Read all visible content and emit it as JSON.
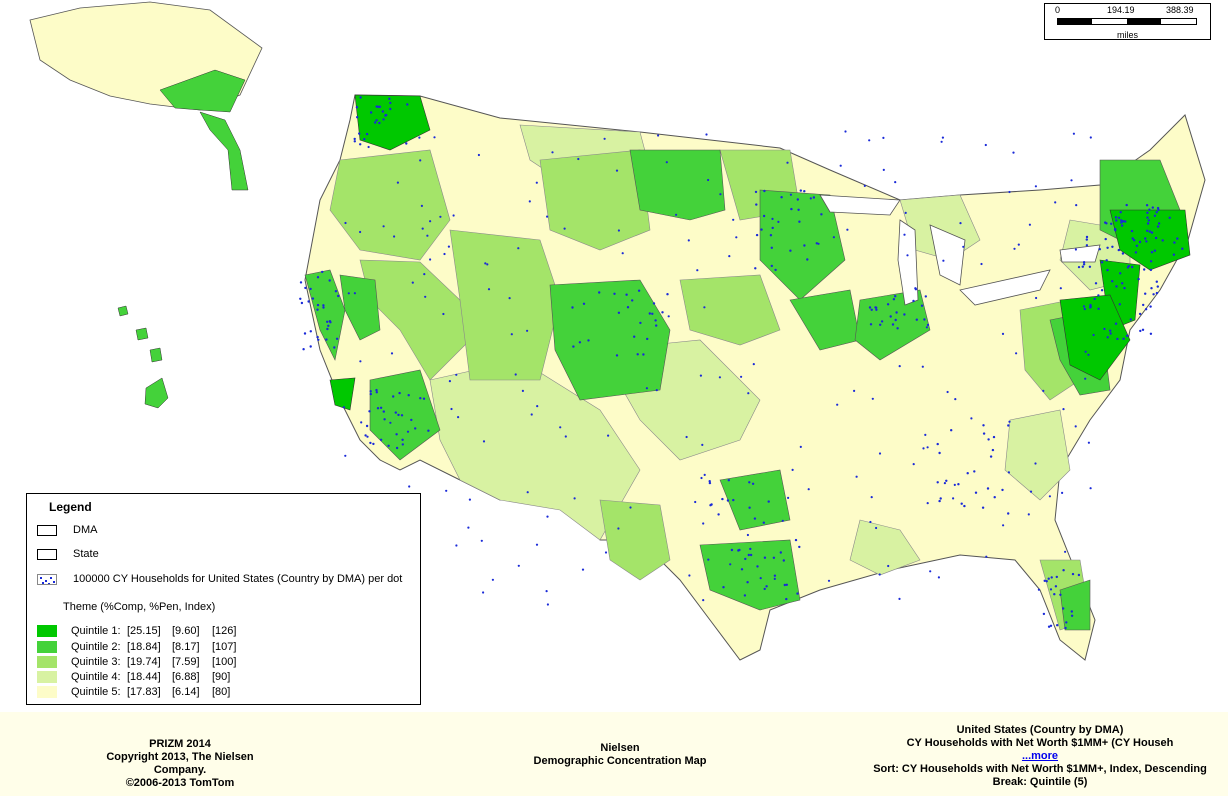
{
  "scale_bar": {
    "ticks": [
      "0",
      "194.19",
      "388.39"
    ],
    "unit": "miles"
  },
  "legend": {
    "title": "Legend",
    "layers": [
      {
        "label": "DMA",
        "symbol": "outline"
      },
      {
        "label": "State",
        "symbol": "outline"
      },
      {
        "label": "100000 CY Households for United States (Country by DMA) per dot",
        "symbol": "dots"
      }
    ],
    "theme_title": "Theme (%Comp, %Pen, Index)",
    "quintiles": [
      {
        "label": "Quintile 1:",
        "comp": "[25.15]",
        "pen": "[9.60]",
        "index": "[126]",
        "color": "#00c800"
      },
      {
        "label": "Quintile 2:",
        "comp": "[18.84]",
        "pen": "[8.17]",
        "index": "[107]",
        "color": "#44d23a"
      },
      {
        "label": "Quintile 3:",
        "comp": "[19.74]",
        "pen": "[7.59]",
        "index": "[100]",
        "color": "#a4e469"
      },
      {
        "label": "Quintile 4:",
        "comp": "[18.44]",
        "pen": "[6.88]",
        "index": "[90]",
        "color": "#d8f2a2"
      },
      {
        "label": "Quintile 5:",
        "comp": "[17.83]",
        "pen": "[6.14]",
        "index": "[80]",
        "color": "#fdfcc8"
      }
    ]
  },
  "colors": {
    "q1": "#00c800",
    "q2": "#44d23a",
    "q3": "#a4e469",
    "q4": "#d8f2a2",
    "q5": "#fdfcc8",
    "dot": "#1a2ad8",
    "boundary": "#8a8a8a",
    "footer_bg": "#fffee9"
  },
  "footer": {
    "left": [
      "PRIZM 2014",
      "Copyright 2013,  The Nielsen Company.",
      "©2006-2013 TomTom"
    ],
    "middle": [
      "Nielsen",
      "Demographic Concentration Map"
    ],
    "right": {
      "geography": "United States (Country by DMA)",
      "variable": "CY Households with Net Worth $1MM+ (CY Househ",
      "more_link": "...more",
      "sort": "Sort: CY Households with Net Worth $1MM+, Index, Descending",
      "break": "Break: Quintile (5)"
    }
  }
}
